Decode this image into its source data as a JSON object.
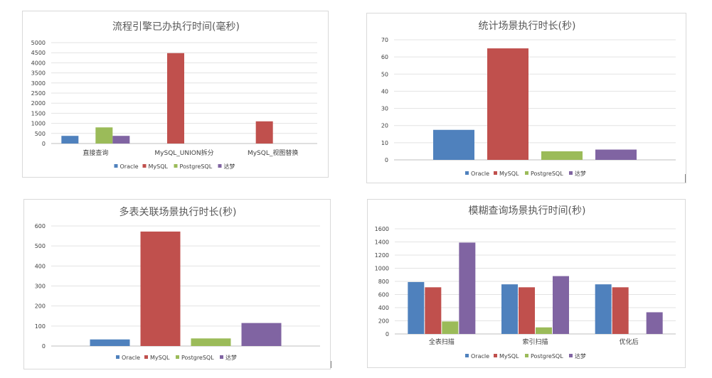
{
  "colors": {
    "Oracle": "#4f81bd",
    "MySQL": "#c0504d",
    "PostgreSQL": "#9bbb59",
    "达梦": "#8064a2"
  },
  "chart_data": [
    {
      "type": "bar",
      "title": "流程引擎已办执行时间(毫秒)",
      "categories": [
        "直接查询",
        "MySQL_UNION拆分",
        "MySQL_视图替换"
      ],
      "series": [
        {
          "name": "Oracle",
          "values": [
            380,
            null,
            null
          ]
        },
        {
          "name": "MySQL",
          "values": [
            null,
            4480,
            1100
          ]
        },
        {
          "name": "PostgreSQL",
          "values": [
            800,
            null,
            null
          ]
        },
        {
          "name": "达梦",
          "values": [
            380,
            null,
            null
          ]
        }
      ],
      "ylim": [
        0,
        5000
      ],
      "yticks": [
        0,
        500,
        1000,
        1500,
        2000,
        2500,
        3000,
        3500,
        4000,
        4500,
        5000
      ],
      "grid": true,
      "legend": "bottom",
      "xlabel": "",
      "ylabel": ""
    },
    {
      "type": "bar",
      "title": "统计场景执行时长(秒)",
      "categories": [
        ""
      ],
      "series": [
        {
          "name": "Oracle",
          "values": [
            17.5
          ]
        },
        {
          "name": "MySQL",
          "values": [
            65
          ]
        },
        {
          "name": "PostgreSQL",
          "values": [
            5
          ]
        },
        {
          "name": "达梦",
          "values": [
            6
          ]
        }
      ],
      "ylim": [
        0,
        70
      ],
      "yticks": [
        0,
        10,
        20,
        30,
        40,
        50,
        60,
        70
      ],
      "grid": true,
      "legend": "bottom",
      "xlabel": "",
      "ylabel": ""
    },
    {
      "type": "bar",
      "title": "多表关联场景执行时长(秒)",
      "categories": [
        ""
      ],
      "series": [
        {
          "name": "Oracle",
          "values": [
            33
          ]
        },
        {
          "name": "MySQL",
          "values": [
            572
          ]
        },
        {
          "name": "PostgreSQL",
          "values": [
            38
          ]
        },
        {
          "name": "达梦",
          "values": [
            115
          ]
        }
      ],
      "ylim": [
        0,
        600
      ],
      "yticks": [
        0,
        100,
        200,
        300,
        400,
        500,
        600
      ],
      "grid": true,
      "legend": "bottom",
      "xlabel": "",
      "ylabel": ""
    },
    {
      "type": "bar",
      "title": "模糊查询场景执行时间(秒)",
      "categories": [
        "全表扫描",
        "索引扫描",
        "优化后"
      ],
      "series": [
        {
          "name": "Oracle",
          "values": [
            790,
            755,
            755
          ]
        },
        {
          "name": "MySQL",
          "values": [
            710,
            710,
            710
          ]
        },
        {
          "name": "PostgreSQL",
          "values": [
            190,
            100,
            null
          ]
        },
        {
          "name": "达梦",
          "values": [
            1390,
            880,
            330
          ]
        }
      ],
      "ylim": [
        0,
        1600
      ],
      "yticks": [
        0,
        200,
        400,
        600,
        800,
        1000,
        1200,
        1400,
        1600
      ],
      "grid": true,
      "legend": "bottom",
      "xlabel": "",
      "ylabel": ""
    }
  ]
}
